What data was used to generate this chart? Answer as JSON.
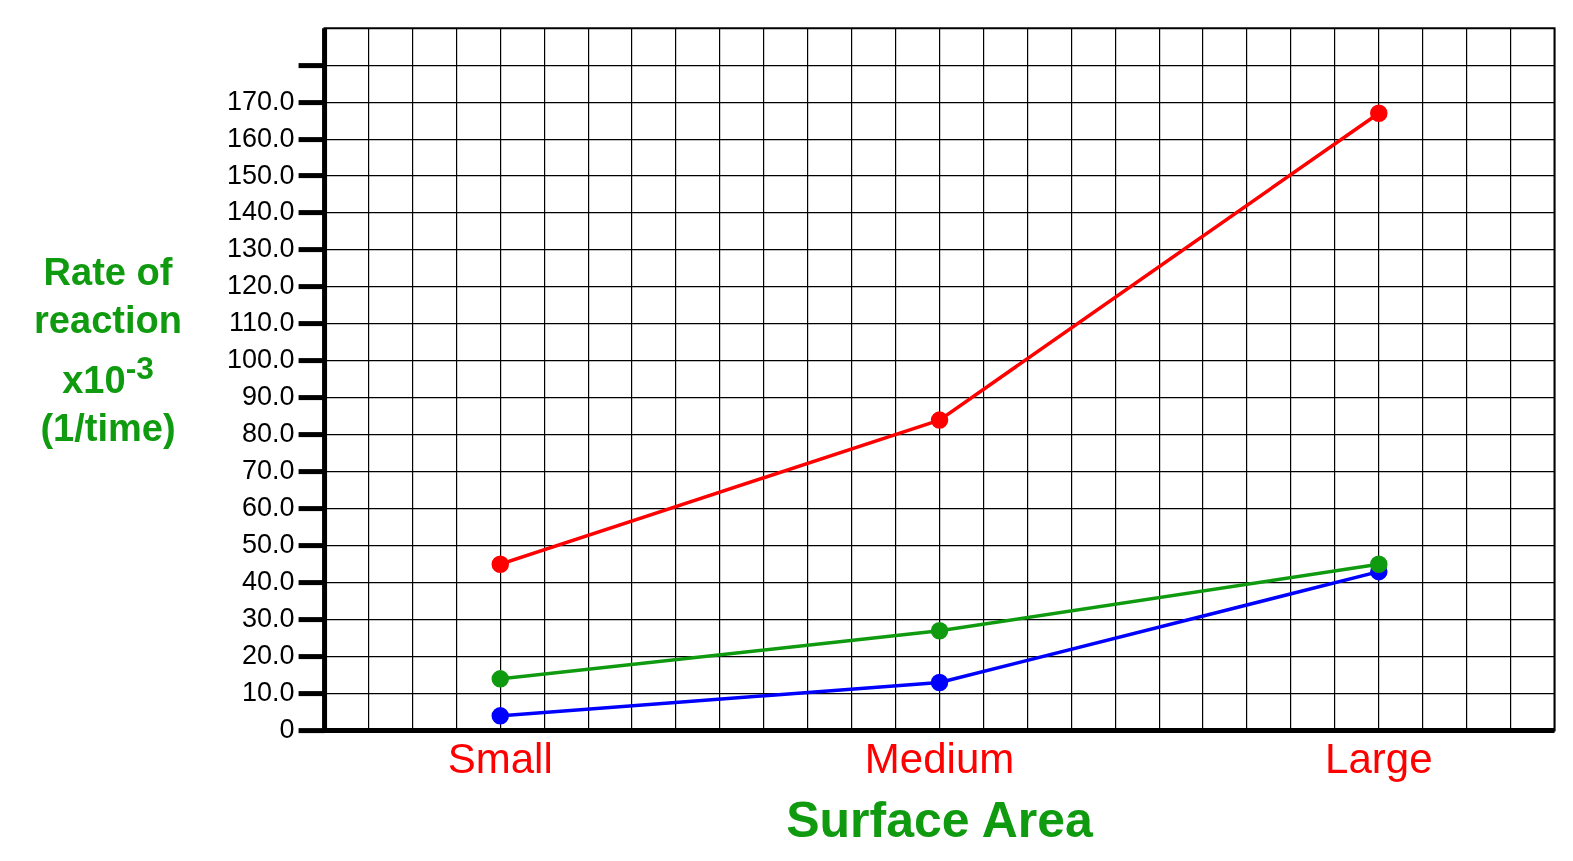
{
  "chart_data": {
    "type": "line",
    "xlabel": "Surface Area",
    "ylabel": "Rate of reaction x10$^{-3}$ (1/time)",
    "categories": [
      "Small",
      "Medium",
      "Large"
    ],
    "series": [
      {
        "color": "#ff0000",
        "values": [
          45,
          84,
          167
        ]
      },
      {
        "color": "#0f9a0f",
        "values": [
          14,
          27,
          45
        ]
      },
      {
        "color": "#0000ff",
        "values": [
          4,
          13,
          43
        ]
      }
    ],
    "ylim": [
      0,
      190
    ],
    "yticks": [
      {
        "value": 0,
        "label": "0"
      },
      {
        "value": 10,
        "label": "10.0"
      },
      {
        "value": 20,
        "label": "20.0"
      },
      {
        "value": 30,
        "label": "30.0"
      },
      {
        "value": 40,
        "label": "40.0"
      },
      {
        "value": 50,
        "label": "50.0"
      },
      {
        "value": 60,
        "label": "60.0"
      },
      {
        "value": 70,
        "label": "70.0"
      },
      {
        "value": 80,
        "label": "80.0"
      },
      {
        "value": 90,
        "label": "90.0"
      },
      {
        "value": 100,
        "label": "100.0"
      },
      {
        "value": 110,
        "label": "110.0"
      },
      {
        "value": 120,
        "label": "120.0"
      },
      {
        "value": 130,
        "label": "130.0"
      },
      {
        "value": 140,
        "label": "140.0"
      },
      {
        "value": 150,
        "label": "150.0"
      },
      {
        "value": 160,
        "label": "160.0"
      },
      {
        "value": 170,
        "label": "170.0"
      },
      {
        "value": 180,
        "label": null
      }
    ],
    "grid": true,
    "marker": "circle",
    "line_style": "solid",
    "legend": false
  }
}
